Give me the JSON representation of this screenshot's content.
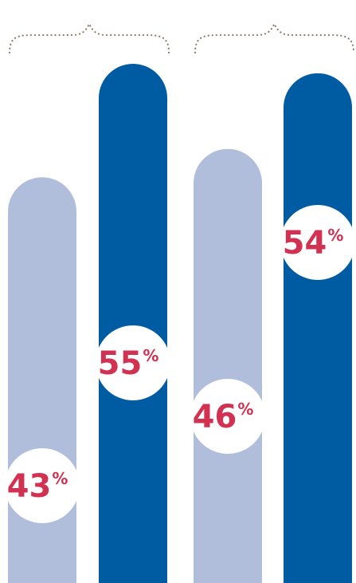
{
  "chart_data": {
    "type": "bar",
    "categories": [
      "",
      "",
      "",
      ""
    ],
    "values": [
      43,
      55,
      46,
      54
    ],
    "labels": [
      "43",
      "55",
      "46",
      "54"
    ],
    "unit_symbol": "%",
    "title": "",
    "xlabel": "",
    "ylabel": "",
    "grid": false,
    "legend": "none",
    "groups": [
      {
        "bars": [
          0,
          1
        ]
      },
      {
        "bars": [
          2,
          3
        ]
      }
    ]
  },
  "colors": {
    "bar_light": "#b0bedb",
    "bar_dark": "#005ca2",
    "label": "#d23251",
    "label_circle": "#ffffff",
    "bracket": "#8a7e71"
  }
}
